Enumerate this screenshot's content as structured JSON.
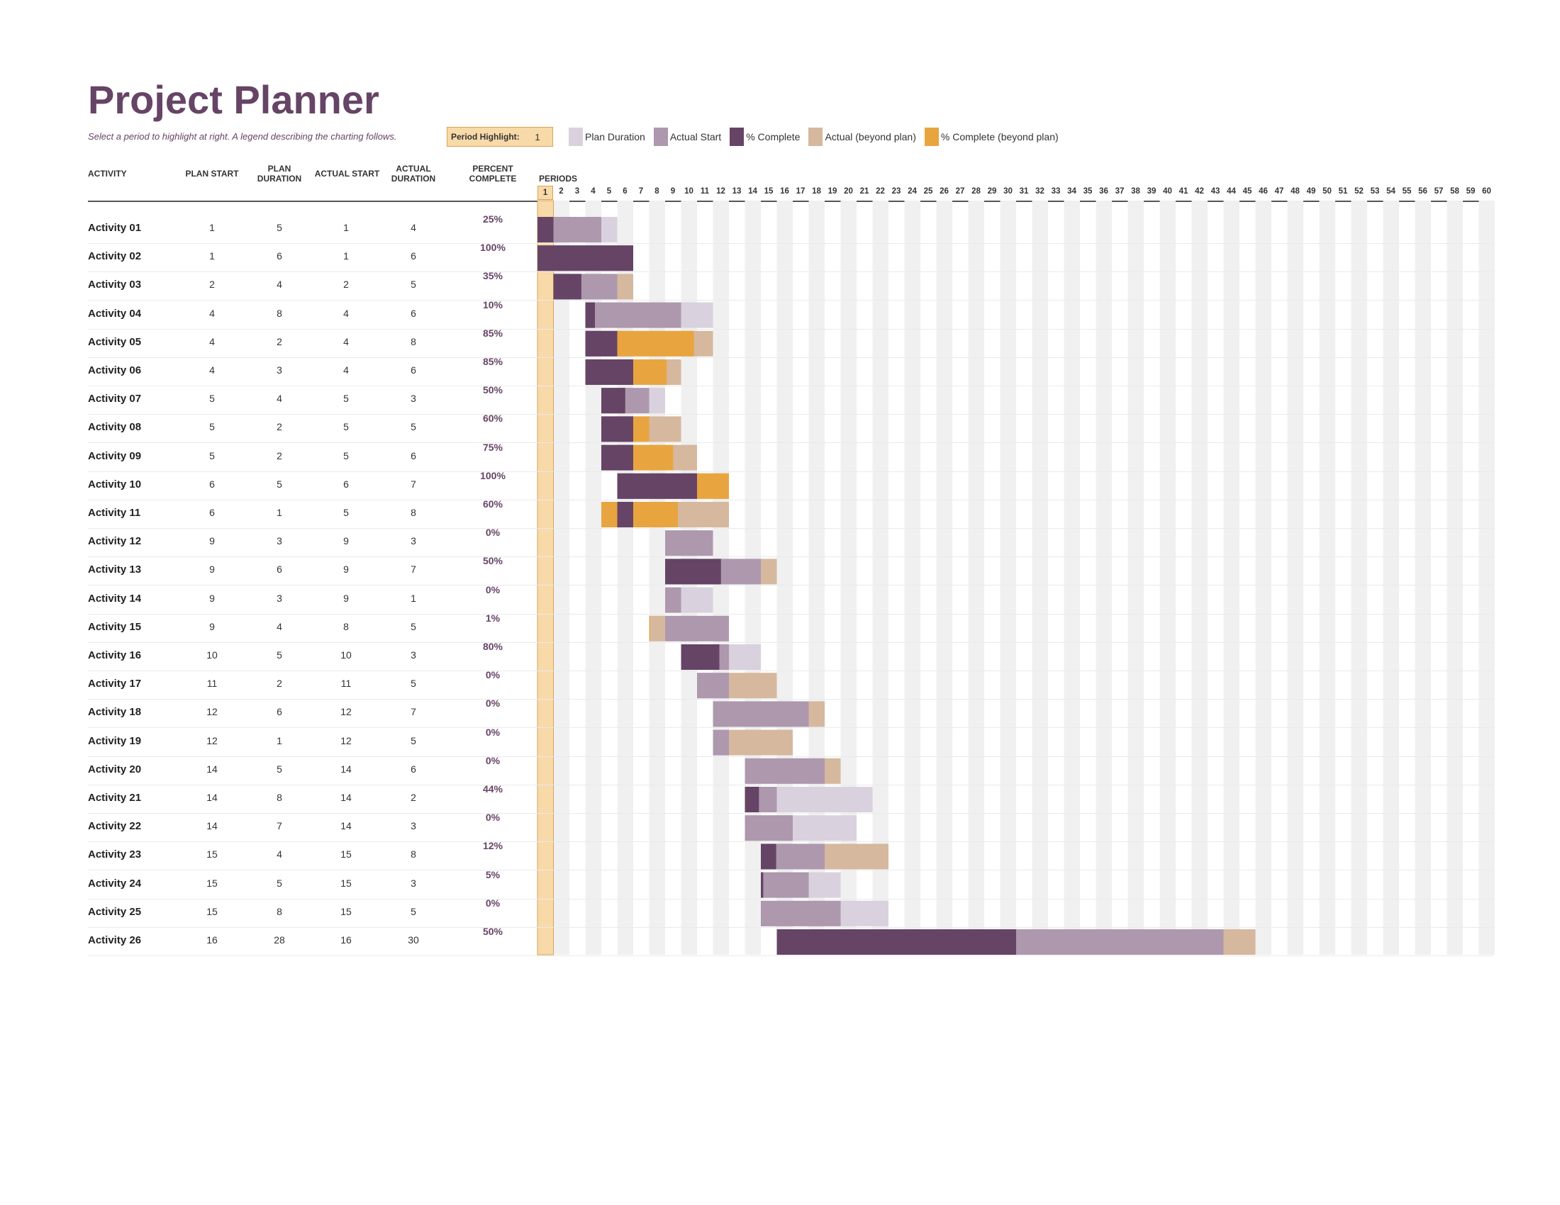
{
  "title": "Project Planner",
  "subtitle": "Select a period to highlight at right.  A legend describing the charting follows.",
  "period_highlight": {
    "label": "Period Highlight:",
    "value": "1"
  },
  "legend": [
    {
      "name": "plan-duration",
      "label": "Plan Duration",
      "color": "#d9d1dd"
    },
    {
      "name": "actual-start",
      "label": "Actual Start",
      "color": "#ae98ae"
    },
    {
      "name": "percent-complete",
      "label": "% Complete",
      "color": "#664466"
    },
    {
      "name": "actual-beyond-plan",
      "label": "Actual (beyond plan)",
      "color": "#d5b89e"
    },
    {
      "name": "percent-complete-beyond-plan",
      "label": "% Complete (beyond plan)",
      "color": "#e8a53f"
    }
  ],
  "columns": {
    "activity": "ACTIVITY",
    "plan_start": "PLAN START",
    "plan_duration": [
      "PLAN",
      "DURATION"
    ],
    "actual_start": "ACTUAL START",
    "actual_duration": [
      "ACTUAL",
      "DURATION"
    ],
    "percent_complete": [
      "PERCENT",
      "COMPLETE"
    ],
    "periods": "PERIODS"
  },
  "period_count": 60,
  "activities": [
    {
      "name": "Activity 01",
      "plan_start": 1,
      "plan_duration": 5,
      "actual_start": 1,
      "actual_duration": 4,
      "percent": "25%"
    },
    {
      "name": "Activity 02",
      "plan_start": 1,
      "plan_duration": 6,
      "actual_start": 1,
      "actual_duration": 6,
      "percent": "100%"
    },
    {
      "name": "Activity 03",
      "plan_start": 2,
      "plan_duration": 4,
      "actual_start": 2,
      "actual_duration": 5,
      "percent": "35%"
    },
    {
      "name": "Activity 04",
      "plan_start": 4,
      "plan_duration": 8,
      "actual_start": 4,
      "actual_duration": 6,
      "percent": "10%"
    },
    {
      "name": "Activity 05",
      "plan_start": 4,
      "plan_duration": 2,
      "actual_start": 4,
      "actual_duration": 8,
      "percent": "85%"
    },
    {
      "name": "Activity 06",
      "plan_start": 4,
      "plan_duration": 3,
      "actual_start": 4,
      "actual_duration": 6,
      "percent": "85%"
    },
    {
      "name": "Activity 07",
      "plan_start": 5,
      "plan_duration": 4,
      "actual_start": 5,
      "actual_duration": 3,
      "percent": "50%"
    },
    {
      "name": "Activity 08",
      "plan_start": 5,
      "plan_duration": 2,
      "actual_start": 5,
      "actual_duration": 5,
      "percent": "60%"
    },
    {
      "name": "Activity 09",
      "plan_start": 5,
      "plan_duration": 2,
      "actual_start": 5,
      "actual_duration": 6,
      "percent": "75%"
    },
    {
      "name": "Activity 10",
      "plan_start": 6,
      "plan_duration": 5,
      "actual_start": 6,
      "actual_duration": 7,
      "percent": "100%"
    },
    {
      "name": "Activity 11",
      "plan_start": 6,
      "plan_duration": 1,
      "actual_start": 5,
      "actual_duration": 8,
      "percent": "60%"
    },
    {
      "name": "Activity 12",
      "plan_start": 9,
      "plan_duration": 3,
      "actual_start": 9,
      "actual_duration": 3,
      "percent": "0%"
    },
    {
      "name": "Activity 13",
      "plan_start": 9,
      "plan_duration": 6,
      "actual_start": 9,
      "actual_duration": 7,
      "percent": "50%"
    },
    {
      "name": "Activity 14",
      "plan_start": 9,
      "plan_duration": 3,
      "actual_start": 9,
      "actual_duration": 1,
      "percent": "0%"
    },
    {
      "name": "Activity 15",
      "plan_start": 9,
      "plan_duration": 4,
      "actual_start": 8,
      "actual_duration": 5,
      "percent": "1%"
    },
    {
      "name": "Activity 16",
      "plan_start": 10,
      "plan_duration": 5,
      "actual_start": 10,
      "actual_duration": 3,
      "percent": "80%"
    },
    {
      "name": "Activity 17",
      "plan_start": 11,
      "plan_duration": 2,
      "actual_start": 11,
      "actual_duration": 5,
      "percent": "0%"
    },
    {
      "name": "Activity 18",
      "plan_start": 12,
      "plan_duration": 6,
      "actual_start": 12,
      "actual_duration": 7,
      "percent": "0%"
    },
    {
      "name": "Activity 19",
      "plan_start": 12,
      "plan_duration": 1,
      "actual_start": 12,
      "actual_duration": 5,
      "percent": "0%"
    },
    {
      "name": "Activity 20",
      "plan_start": 14,
      "plan_duration": 5,
      "actual_start": 14,
      "actual_duration": 6,
      "percent": "0%"
    },
    {
      "name": "Activity 21",
      "plan_start": 14,
      "plan_duration": 8,
      "actual_start": 14,
      "actual_duration": 2,
      "percent": "44%"
    },
    {
      "name": "Activity 22",
      "plan_start": 14,
      "plan_duration": 7,
      "actual_start": 14,
      "actual_duration": 3,
      "percent": "0%"
    },
    {
      "name": "Activity 23",
      "plan_start": 15,
      "plan_duration": 4,
      "actual_start": 15,
      "actual_duration": 8,
      "percent": "12%"
    },
    {
      "name": "Activity 24",
      "plan_start": 15,
      "plan_duration": 5,
      "actual_start": 15,
      "actual_duration": 3,
      "percent": "5%"
    },
    {
      "name": "Activity 25",
      "plan_start": 15,
      "plan_duration": 8,
      "actual_start": 15,
      "actual_duration": 5,
      "percent": "0%"
    },
    {
      "name": "Activity 26",
      "plan_start": 16,
      "plan_duration": 28,
      "actual_start": 16,
      "actual_duration": 30,
      "percent": "50%"
    }
  ]
}
